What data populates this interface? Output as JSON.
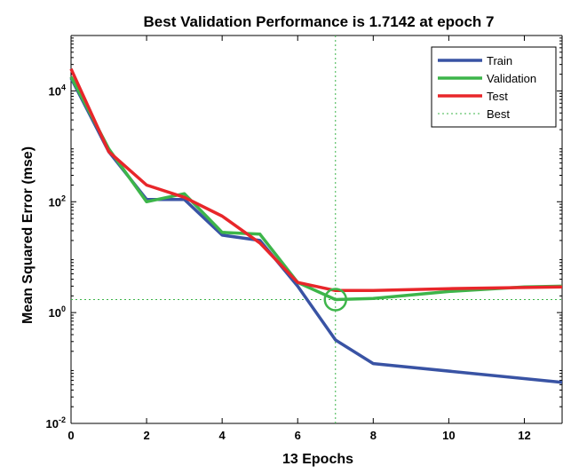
{
  "chart_data": {
    "type": "line",
    "title": "Best Validation Performance is 1.7142 at epoch 7",
    "xlabel": "13 Epochs",
    "ylabel": "Mean Squared Error  (mse)",
    "xlim": [
      0,
      13
    ],
    "ylim": [
      0.01,
      100000
    ],
    "yscale": "log",
    "grid": false,
    "legend_position": "top-right",
    "x_ticks": [
      "0",
      "2",
      "4",
      "6",
      "8",
      "10",
      "12"
    ],
    "y_ticks": [
      {
        "base": "10",
        "exp": "-2",
        "value": 0.01
      },
      {
        "base": "10",
        "exp": "0",
        "value": 1
      },
      {
        "base": "10",
        "exp": "2",
        "value": 100
      },
      {
        "base": "10",
        "exp": "4",
        "value": 10000
      }
    ],
    "series": [
      {
        "name": "Train",
        "color": "#3953a4",
        "points": [
          [
            0,
            17000
          ],
          [
            1,
            800
          ],
          [
            2,
            110
          ],
          [
            3,
            110
          ],
          [
            4,
            25
          ],
          [
            5,
            20
          ],
          [
            6,
            3
          ],
          [
            7,
            0.32
          ],
          [
            8,
            0.12
          ],
          [
            13,
            0.055
          ]
        ]
      },
      {
        "name": "Validation",
        "color": "#3db54a",
        "points": [
          [
            0,
            18000
          ],
          [
            1,
            900
          ],
          [
            2,
            100
          ],
          [
            3,
            140
          ],
          [
            4,
            28
          ],
          [
            5,
            26
          ],
          [
            6,
            3.5
          ],
          [
            7,
            1.7142
          ],
          [
            8,
            1.8
          ],
          [
            10,
            2.4
          ],
          [
            12,
            2.9
          ],
          [
            13,
            3
          ]
        ]
      },
      {
        "name": "Test",
        "color": "#e8262a",
        "points": [
          [
            0,
            25000
          ],
          [
            1,
            800
          ],
          [
            2,
            200
          ],
          [
            3,
            120
          ],
          [
            4,
            55
          ],
          [
            5,
            18
          ],
          [
            6,
            3.5
          ],
          [
            7,
            2.5
          ],
          [
            8,
            2.5
          ],
          [
            10,
            2.7
          ],
          [
            13,
            2.9
          ]
        ]
      }
    ],
    "best": {
      "name": "Best",
      "epoch": 7,
      "value": 1.7142,
      "color": "#3db54a"
    }
  }
}
